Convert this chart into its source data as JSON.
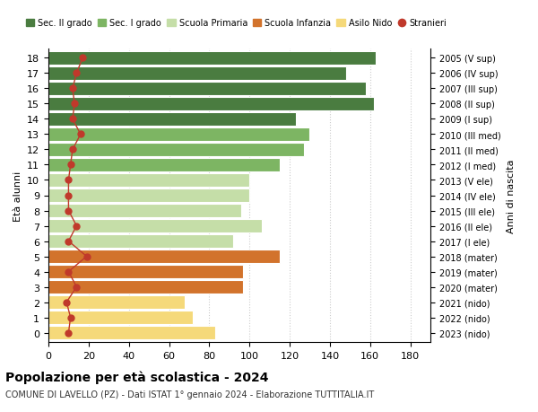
{
  "ages": [
    18,
    17,
    16,
    15,
    14,
    13,
    12,
    11,
    10,
    9,
    8,
    7,
    6,
    5,
    4,
    3,
    2,
    1,
    0
  ],
  "bar_values": [
    163,
    148,
    158,
    162,
    123,
    130,
    127,
    115,
    100,
    100,
    96,
    106,
    92,
    115,
    97,
    97,
    68,
    72,
    83
  ],
  "right_labels_by_age": {
    "18": "2005 (V sup)",
    "17": "2006 (IV sup)",
    "16": "2007 (III sup)",
    "15": "2008 (II sup)",
    "14": "2009 (I sup)",
    "13": "2010 (III med)",
    "12": "2011 (II med)",
    "11": "2012 (I med)",
    "10": "2013 (V ele)",
    "9": "2014 (IV ele)",
    "8": "2015 (III ele)",
    "7": "2016 (II ele)",
    "6": "2017 (I ele)",
    "5": "2018 (mater)",
    "4": "2019 (mater)",
    "3": "2020 (mater)",
    "2": "2021 (nido)",
    "1": "2022 (nido)",
    "0": "2023 (nido)"
  },
  "bar_colors": [
    "#4a7c40",
    "#4a7c40",
    "#4a7c40",
    "#4a7c40",
    "#4a7c40",
    "#7db563",
    "#7db563",
    "#7db563",
    "#c5dea8",
    "#c5dea8",
    "#c5dea8",
    "#c5dea8",
    "#c5dea8",
    "#d2732c",
    "#d2732c",
    "#d2732c",
    "#f5d97a",
    "#f5d97a",
    "#f5d97a"
  ],
  "stranieri_values": [
    17,
    14,
    12,
    13,
    12,
    16,
    12,
    11,
    10,
    10,
    10,
    14,
    10,
    19,
    10,
    14,
    9,
    11,
    10
  ],
  "legend_labels": [
    "Sec. II grado",
    "Sec. I grado",
    "Scuola Primaria",
    "Scuola Infanzia",
    "Asilo Nido",
    "Stranieri"
  ],
  "legend_colors": [
    "#4a7c40",
    "#7db563",
    "#c5dea8",
    "#d2732c",
    "#f5d97a",
    "#c0392b"
  ],
  "title": "Popolazione per età scolastica - 2024",
  "subtitle": "COMUNE DI LAVELLO (PZ) - Dati ISTAT 1° gennaio 2024 - Elaborazione TUTTITALIA.IT",
  "ylabel": "Età alunni",
  "ylabel_right": "Anni di nascita",
  "stranieri_color": "#c0392b",
  "background_color": "#ffffff",
  "grid_color": "#cccccc"
}
